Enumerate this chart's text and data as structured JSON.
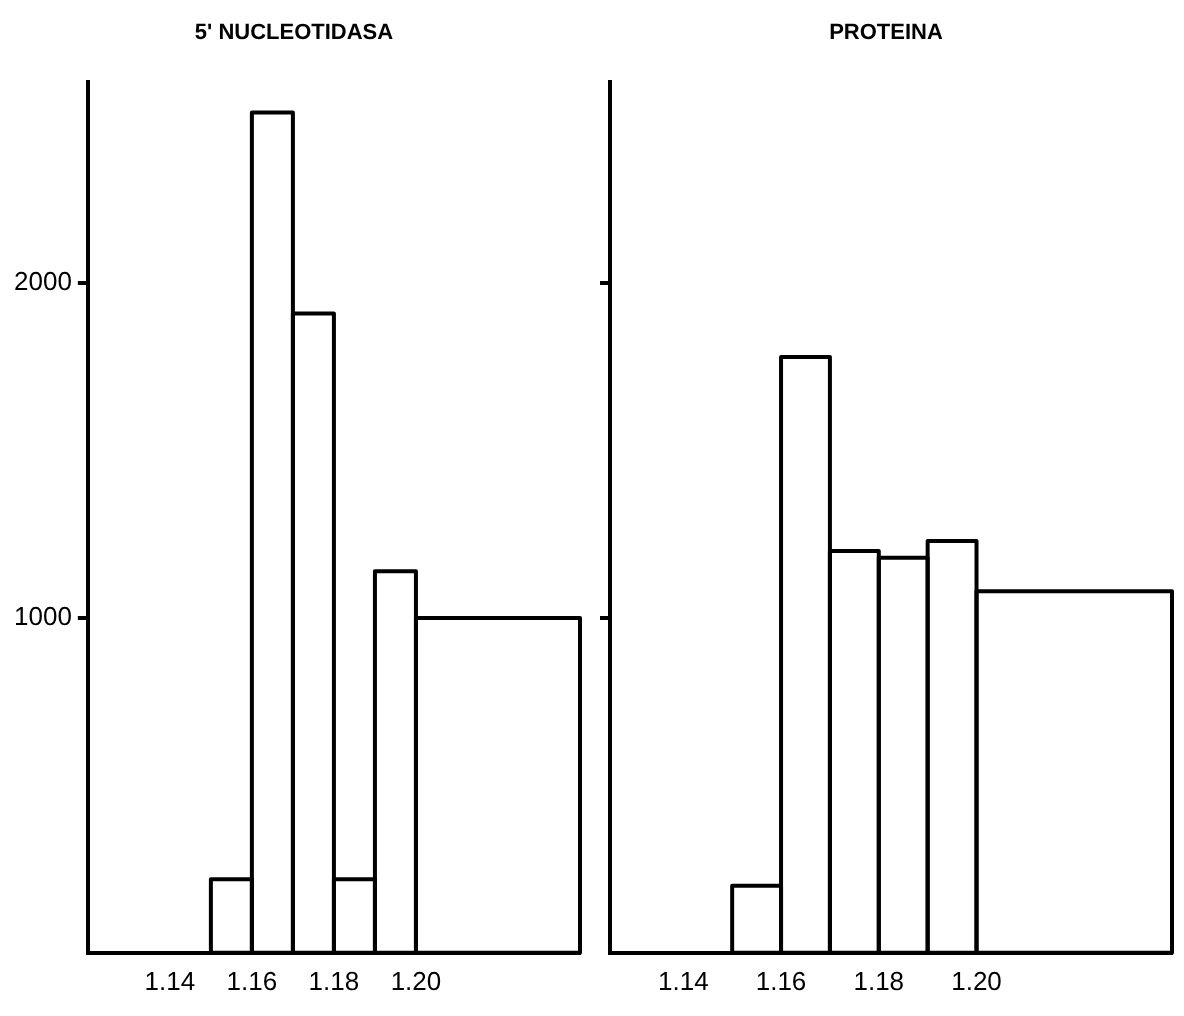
{
  "chart_data": [
    {
      "type": "histogram",
      "title": "5' NUCLEOTIDASA",
      "bins": [
        1.15,
        1.16,
        1.17,
        1.18,
        1.19,
        1.2,
        1.24
      ],
      "values": [
        220,
        2510,
        1910,
        220,
        1140,
        1000
      ],
      "color": "#000000",
      "xlim": [
        1.12,
        1.24
      ],
      "xticks": [
        1.14,
        1.16,
        1.18,
        {
          "value": 1.2,
          "label": "1.20"
        }
      ],
      "ylim": [
        0,
        2600
      ],
      "yticks": [
        1000,
        2000
      ],
      "grid": false,
      "legend": false
    },
    {
      "type": "histogram",
      "title": "PROTEINA",
      "bins": [
        1.15,
        1.16,
        1.17,
        1.18,
        1.19,
        1.2,
        1.24
      ],
      "values": [
        200,
        1780,
        1200,
        1180,
        1230,
        1080
      ],
      "color": "#000000",
      "xlim": [
        1.125,
        1.24
      ],
      "xticks": [
        1.14,
        1.16,
        1.18,
        {
          "value": 1.2,
          "label": "1.20"
        }
      ],
      "ylim": [
        0,
        2600
      ],
      "yticks": [
        {
          "value": 1000,
          "label": null
        },
        {
          "value": 2000,
          "label": null
        }
      ],
      "tick_labels": "x",
      "grid": false,
      "legend": false
    }
  ]
}
